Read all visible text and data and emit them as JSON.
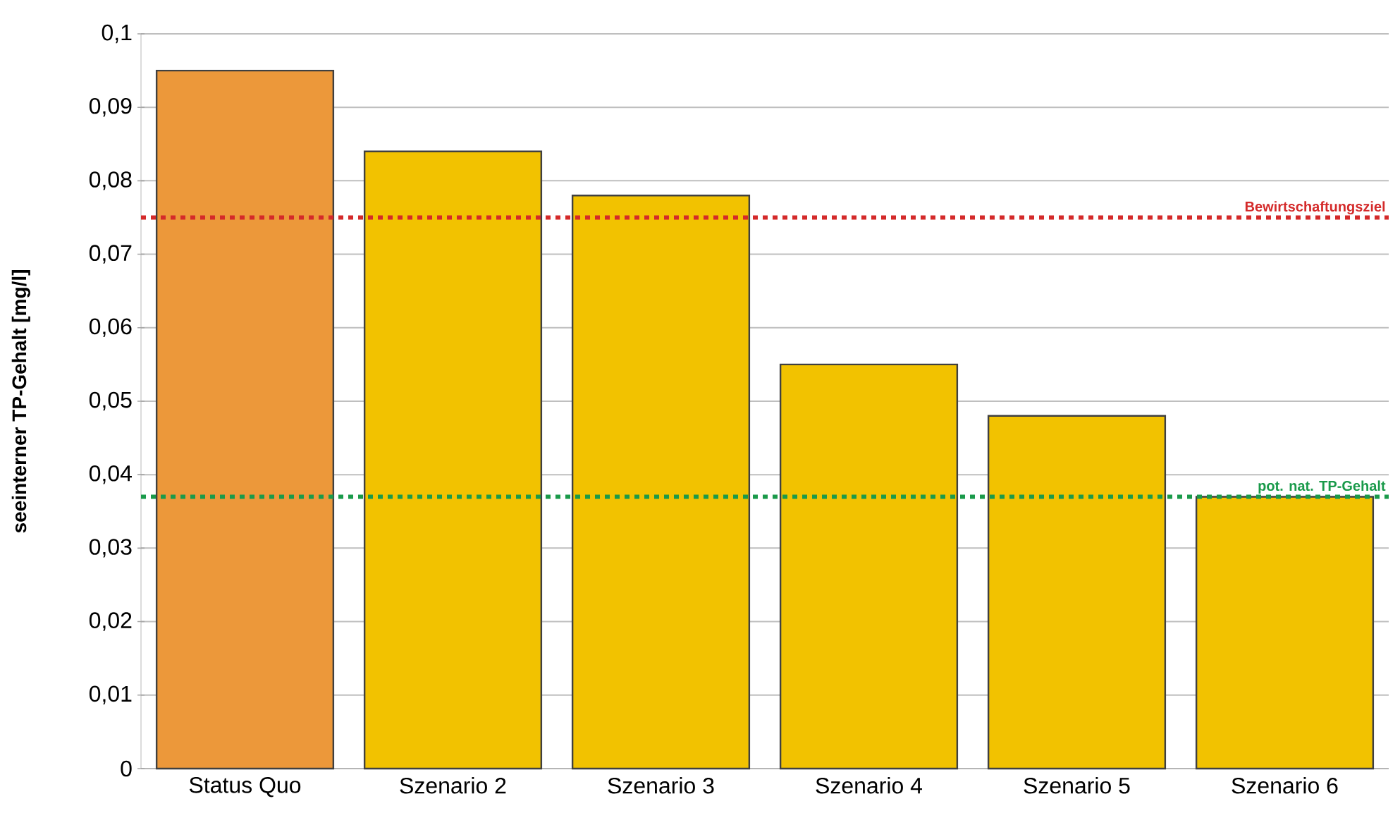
{
  "chart_data": {
    "type": "bar",
    "ylabel": "seeinterner TP-Gehalt [mg/l]",
    "categories": [
      "Status Quo",
      "Szenario 2",
      "Szenario 3",
      "Szenario 4",
      "Szenario 5",
      "Szenario 6"
    ],
    "values": [
      0.095,
      0.084,
      0.078,
      0.055,
      0.048,
      0.037
    ],
    "colors": [
      "#ec983a",
      "#f2c200",
      "#f2c200",
      "#f2c200",
      "#f2c200",
      "#f2c200"
    ],
    "ylim": [
      0,
      0.1
    ],
    "yticks": [
      0,
      {
        "value": 0.01,
        "label": "0,01"
      },
      {
        "value": 0.02,
        "label": "0,02"
      },
      {
        "value": 0.03,
        "label": "0,03"
      },
      {
        "value": 0.04,
        "label": "0,04"
      },
      {
        "value": 0.05,
        "label": "0,05"
      },
      {
        "value": 0.06,
        "label": "0,06"
      },
      {
        "value": 0.07,
        "label": "0,07"
      },
      {
        "value": 0.08,
        "label": "0,08"
      },
      {
        "value": 0.09,
        "label": "0,09"
      },
      {
        "value": 0.1,
        "label": "0,1"
      }
    ],
    "grid": "y",
    "ref_lines": [
      {
        "axis": "y",
        "value": 0.075,
        "label": "Bewirtschaftungsziel",
        "color": "#d42a2a",
        "line_style": "dotted"
      },
      {
        "axis": "y",
        "value": 0.037,
        "label": "pot. nat. TP-Gehalt",
        "color": "#1a9a4a",
        "line_style": "dotted"
      }
    ]
  }
}
